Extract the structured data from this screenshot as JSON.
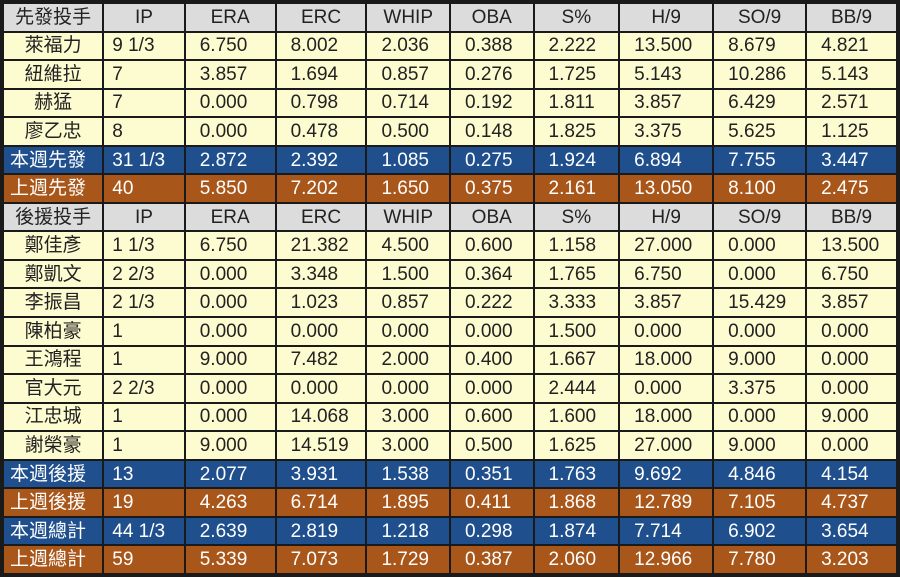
{
  "columns": [
    "IP",
    "ERA",
    "ERC",
    "WHIP",
    "OBA",
    "S%",
    "H/9",
    "SO/9",
    "BB/9"
  ],
  "colors": {
    "header_bg": "#dcdcdc",
    "player_bg": "#fdfbd0",
    "this_week_bg": "#1f4f8c",
    "last_week_bg": "#a9561a",
    "border": "#1a1a1a"
  },
  "rows": [
    {
      "type": "header",
      "label": "先發投手",
      "cells": [
        "IP",
        "ERA",
        "ERC",
        "WHIP",
        "OBA",
        "S%",
        "H/9",
        "SO/9",
        "BB/9"
      ]
    },
    {
      "type": "player",
      "label": "萊福力",
      "cells": [
        "9 1/3",
        "6.750",
        "8.002",
        "2.036",
        "0.388",
        "2.222",
        "13.500",
        "8.679",
        "4.821"
      ]
    },
    {
      "type": "player",
      "label": "紐維拉",
      "cells": [
        "7",
        "3.857",
        "1.694",
        "0.857",
        "0.276",
        "1.725",
        "5.143",
        "10.286",
        "5.143"
      ]
    },
    {
      "type": "player",
      "label": "赫猛",
      "cells": [
        "7",
        "0.000",
        "0.798",
        "0.714",
        "0.192",
        "1.811",
        "3.857",
        "6.429",
        "2.571"
      ]
    },
    {
      "type": "player",
      "label": "廖乙忠",
      "cells": [
        "8",
        "0.000",
        "0.478",
        "0.500",
        "0.148",
        "1.825",
        "3.375",
        "5.625",
        "1.125"
      ]
    },
    {
      "type": "week",
      "label": "本週先發",
      "cells": [
        "31 1/3",
        "2.872",
        "2.392",
        "1.085",
        "0.275",
        "1.924",
        "6.894",
        "7.755",
        "3.447"
      ]
    },
    {
      "type": "prev",
      "label": "上週先發",
      "cells": [
        "40",
        "5.850",
        "7.202",
        "1.650",
        "0.375",
        "2.161",
        "13.050",
        "8.100",
        "2.475"
      ]
    },
    {
      "type": "header",
      "label": "後援投手",
      "cells": [
        "IP",
        "ERA",
        "ERC",
        "WHIP",
        "OBA",
        "S%",
        "H/9",
        "SO/9",
        "BB/9"
      ]
    },
    {
      "type": "player",
      "label": "鄭佳彥",
      "cells": [
        "1 1/3",
        "6.750",
        "21.382",
        "4.500",
        "0.600",
        "1.158",
        "27.000",
        "0.000",
        "13.500"
      ]
    },
    {
      "type": "player",
      "label": "鄭凱文",
      "cells": [
        "2 2/3",
        "0.000",
        "3.348",
        "1.500",
        "0.364",
        "1.765",
        "6.750",
        "0.000",
        "6.750"
      ]
    },
    {
      "type": "player",
      "label": "李振昌",
      "cells": [
        "2 1/3",
        "0.000",
        "1.023",
        "0.857",
        "0.222",
        "3.333",
        "3.857",
        "15.429",
        "3.857"
      ]
    },
    {
      "type": "player",
      "label": "陳柏豪",
      "cells": [
        "1",
        "0.000",
        "0.000",
        "0.000",
        "0.000",
        "1.500",
        "0.000",
        "0.000",
        "0.000"
      ]
    },
    {
      "type": "player",
      "label": "王鴻程",
      "cells": [
        "1",
        "9.000",
        "7.482",
        "2.000",
        "0.400",
        "1.667",
        "18.000",
        "9.000",
        "0.000"
      ]
    },
    {
      "type": "player",
      "label": "官大元",
      "cells": [
        "2 2/3",
        "0.000",
        "0.000",
        "0.000",
        "0.000",
        "2.444",
        "0.000",
        "3.375",
        "0.000"
      ]
    },
    {
      "type": "player",
      "label": "江忠城",
      "cells": [
        "1",
        "0.000",
        "14.068",
        "3.000",
        "0.600",
        "1.600",
        "18.000",
        "0.000",
        "9.000"
      ]
    },
    {
      "type": "player",
      "label": "謝榮豪",
      "cells": [
        "1",
        "9.000",
        "14.519",
        "3.000",
        "0.500",
        "1.625",
        "27.000",
        "9.000",
        "0.000"
      ]
    },
    {
      "type": "week",
      "label": "本週後援",
      "cells": [
        "13",
        "2.077",
        "3.931",
        "1.538",
        "0.351",
        "1.763",
        "9.692",
        "4.846",
        "4.154"
      ]
    },
    {
      "type": "prev",
      "label": "上週後援",
      "cells": [
        "19",
        "4.263",
        "6.714",
        "1.895",
        "0.411",
        "1.868",
        "12.789",
        "7.105",
        "4.737"
      ]
    },
    {
      "type": "week",
      "label": "本週總計",
      "cells": [
        "44 1/3",
        "2.639",
        "2.819",
        "1.218",
        "0.298",
        "1.874",
        "7.714",
        "6.902",
        "3.654"
      ]
    },
    {
      "type": "prev",
      "label": "上週總計",
      "cells": [
        "59",
        "5.339",
        "7.073",
        "1.729",
        "0.387",
        "2.060",
        "12.966",
        "7.780",
        "3.203"
      ]
    }
  ]
}
